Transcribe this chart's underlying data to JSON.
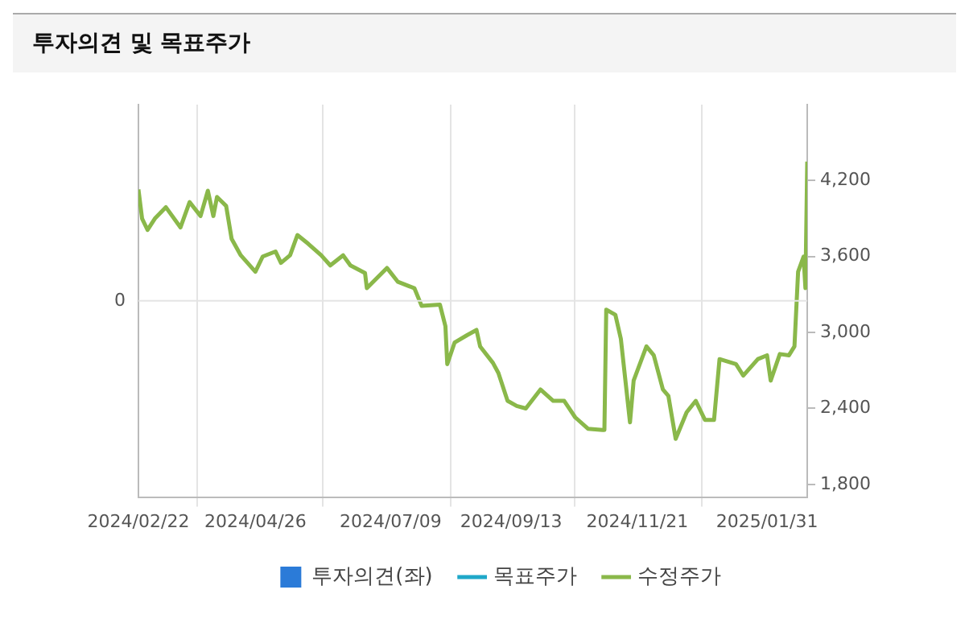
{
  "chart_data": {
    "type": "line",
    "title": "투자의견 및 목표주가",
    "xlim": [
      "2024-02-22",
      "2025-02-22"
    ],
    "xticks": [
      {
        "value": "2024-02-22",
        "label": "2024/02/22"
      },
      {
        "value": "2024-04-26",
        "label": "2024/04/26"
      },
      {
        "value": "2024-07-09",
        "label": "2024/07/09"
      },
      {
        "value": "2024-09-13",
        "label": "2024/09/13"
      },
      {
        "value": "2024-11-21",
        "label": "2024/11/21"
      },
      {
        "value": "2025-01-31",
        "label": "2025/01/31"
      }
    ],
    "annotations": [
      "0"
    ],
    "y2lim": [
      1700,
      4800
    ],
    "y2ticks": [
      {
        "value": 1800,
        "label": "1,800"
      },
      {
        "value": 2400,
        "label": "2,400"
      },
      {
        "value": 3000,
        "label": "3,000"
      },
      {
        "value": 3600,
        "label": "3,600"
      },
      {
        "value": 4200,
        "label": "4,200"
      }
    ],
    "grid": true,
    "legend": "bottom",
    "series": [
      {
        "name": "투자의견(좌)",
        "type": "bar",
        "color": "#2b7bd8"
      },
      {
        "name": "목표주가",
        "type": "line",
        "color": "#1fa8c9"
      },
      {
        "name": "수정주가",
        "axis": "y2",
        "color": "#8ab84a",
        "x": [
          "2024-02-22",
          "2024-02-24",
          "2024-02-27",
          "2024-03-02",
          "2024-03-08",
          "2024-03-16",
          "2024-03-21",
          "2024-03-27",
          "2024-03-31",
          "2024-04-03",
          "2024-04-05",
          "2024-04-10",
          "2024-04-13",
          "2024-04-18",
          "2024-04-26",
          "2024-04-30",
          "2024-05-07",
          "2024-05-10",
          "2024-05-15",
          "2024-05-19",
          "2024-05-25",
          "2024-06-01",
          "2024-06-06",
          "2024-06-13",
          "2024-06-17",
          "2024-06-25",
          "2024-06-26",
          "2024-07-07",
          "2024-07-13",
          "2024-07-22",
          "2024-07-26",
          "2024-08-05",
          "2024-08-08",
          "2024-08-09",
          "2024-08-13",
          "2024-08-20",
          "2024-08-25",
          "2024-08-27",
          "2024-09-03",
          "2024-09-06",
          "2024-09-11",
          "2024-09-16",
          "2024-09-21",
          "2024-09-29",
          "2024-10-06",
          "2024-10-12",
          "2024-10-18",
          "2024-10-25",
          "2024-11-02",
          "2024-11-03",
          "2024-11-04",
          "2024-11-09",
          "2024-11-12",
          "2024-11-17",
          "2024-11-19",
          "2024-11-26",
          "2024-11-30",
          "2024-12-05",
          "2024-12-08",
          "2024-12-12",
          "2024-12-18",
          "2024-12-23",
          "2024-12-28",
          "2025-01-02",
          "2025-01-05",
          "2025-01-14",
          "2025-01-18",
          "2025-01-26",
          "2025-01-31",
          "2025-02-02",
          "2025-02-07",
          "2025-02-12",
          "2025-02-15",
          "2025-02-17",
          "2025-02-20",
          "2025-02-21",
          "2025-02-22"
        ],
        "values": [
          4130,
          3900,
          3810,
          3900,
          3990,
          3830,
          4030,
          3920,
          4120,
          3920,
          4070,
          4000,
          3740,
          3610,
          3480,
          3600,
          3640,
          3550,
          3610,
          3770,
          3700,
          3610,
          3530,
          3610,
          3530,
          3470,
          3350,
          3510,
          3400,
          3350,
          3210,
          3220,
          3050,
          2750,
          2920,
          2980,
          3020,
          2890,
          2760,
          2680,
          2460,
          2420,
          2400,
          2550,
          2460,
          2460,
          2330,
          2240,
          2230,
          2230,
          3180,
          3140,
          2950,
          2290,
          2620,
          2890,
          2820,
          2550,
          2500,
          2160,
          2370,
          2460,
          2310,
          2310,
          2790,
          2750,
          2660,
          2790,
          2820,
          2620,
          2830,
          2820,
          2890,
          3480,
          3600,
          3350,
          4350
        ]
      }
    ]
  }
}
